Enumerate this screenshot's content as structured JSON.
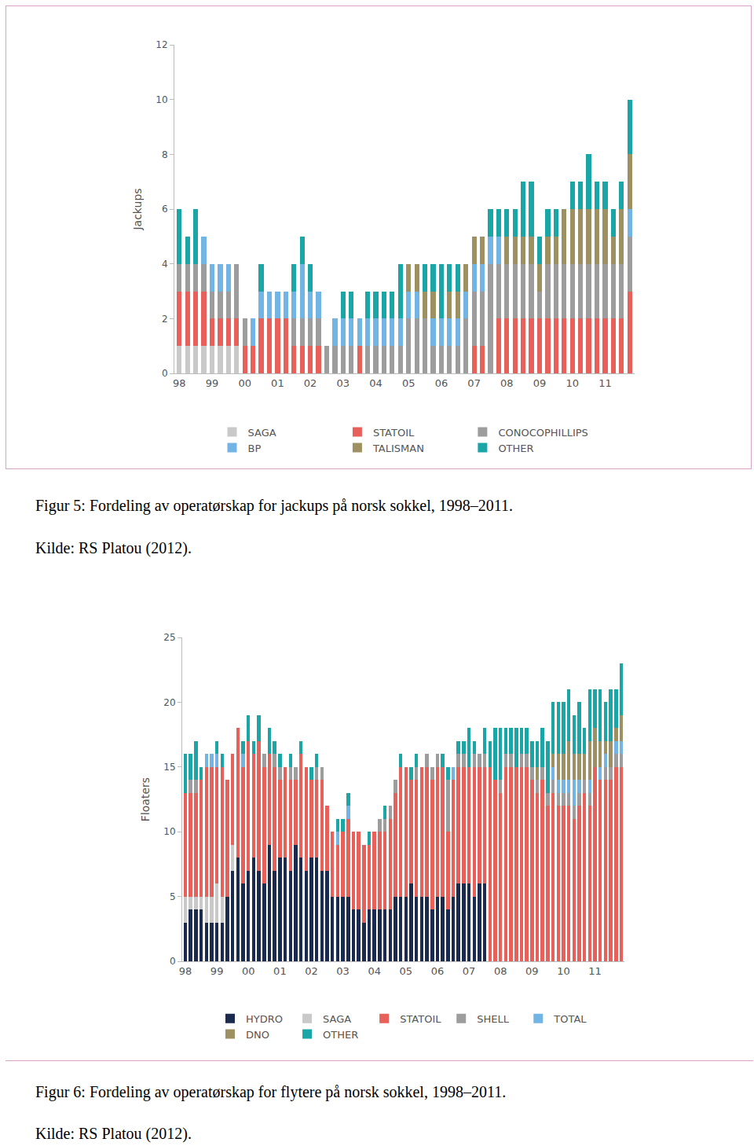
{
  "chart_data": [
    {
      "type": "bar",
      "stacked": true,
      "y_label": "Jackups",
      "legend": "bottom",
      "grid": false,
      "categories": [
        "98",
        null,
        null,
        null,
        "99",
        null,
        null,
        null,
        "00",
        null,
        null,
        null,
        "01",
        null,
        null,
        null,
        "02",
        null,
        null,
        null,
        "03",
        null,
        null,
        null,
        "04",
        null,
        null,
        null,
        "05",
        null,
        null,
        null,
        "06",
        null,
        null,
        null,
        "07",
        null,
        null,
        null,
        "08",
        null,
        null,
        null,
        "09",
        null,
        null,
        null,
        "10",
        null,
        null,
        null,
        "11",
        null,
        null,
        null
      ],
      "ylim": [
        0,
        12
      ],
      "yticks": [
        0,
        2,
        4,
        6,
        8,
        10,
        12
      ],
      "series": [
        {
          "name": "SAGA",
          "color": "#c9c9c9",
          "values": [
            1,
            1,
            1,
            1,
            1,
            1,
            1,
            1,
            0,
            0,
            0,
            0,
            0,
            0,
            0,
            0,
            0,
            0,
            0,
            0,
            0,
            0,
            0,
            0,
            0,
            0,
            0,
            0,
            0,
            0,
            0,
            0,
            0,
            0,
            0,
            0,
            0,
            0,
            0,
            0,
            0,
            0,
            0,
            0,
            0,
            0,
            0,
            0,
            0,
            0,
            0,
            0,
            0,
            0,
            0,
            0
          ]
        },
        {
          "name": "STATOIL",
          "color": "#e8605a",
          "values": [
            2,
            2,
            2,
            2,
            1,
            1,
            1,
            1,
            1,
            1,
            2,
            2,
            2,
            2,
            1,
            1,
            1,
            1,
            0,
            0,
            0,
            0,
            1,
            0,
            0,
            0,
            0,
            0,
            0,
            0,
            0,
            0,
            0,
            0,
            0,
            0,
            1,
            1,
            0,
            2,
            2,
            2,
            2,
            2,
            2,
            2,
            2,
            2,
            2,
            2,
            2,
            2,
            2,
            2,
            2,
            3
          ]
        },
        {
          "name": "CONOCOPHILLIPS",
          "color": "#9d9d9d",
          "values": [
            1,
            1,
            1,
            1,
            1,
            1,
            1,
            2,
            1,
            0,
            0,
            0,
            0,
            0,
            1,
            1,
            1,
            1,
            1,
            1,
            1,
            1,
            0,
            1,
            1,
            1,
            1,
            1,
            2,
            2,
            2,
            1,
            1,
            1,
            1,
            2,
            2,
            2,
            4,
            2,
            2,
            2,
            2,
            2,
            1,
            2,
            2,
            2,
            2,
            2,
            2,
            2,
            2,
            2,
            2,
            2
          ]
        },
        {
          "name": "BP",
          "color": "#72b4e4",
          "values": [
            0,
            0,
            0,
            1,
            1,
            1,
            1,
            0,
            0,
            1,
            1,
            1,
            1,
            1,
            1,
            2,
            1,
            1,
            0,
            1,
            1,
            1,
            1,
            1,
            1,
            1,
            1,
            1,
            1,
            1,
            0,
            1,
            1,
            1,
            1,
            1,
            1,
            1,
            1,
            1,
            0,
            0,
            0,
            0,
            0,
            0,
            0,
            0,
            0,
            0,
            0,
            0,
            0,
            0,
            0,
            1
          ]
        },
        {
          "name": "TALISMAN",
          "color": "#9e9161",
          "values": [
            0,
            0,
            0,
            0,
            0,
            0,
            0,
            0,
            0,
            0,
            0,
            0,
            0,
            0,
            0,
            0,
            0,
            0,
            0,
            0,
            0,
            0,
            0,
            0,
            0,
            0,
            0,
            0,
            1,
            1,
            1,
            1,
            0,
            1,
            1,
            1,
            1,
            1,
            0,
            0,
            1,
            1,
            1,
            1,
            1,
            1,
            1,
            2,
            2,
            2,
            2,
            2,
            2,
            1,
            2,
            2
          ]
        },
        {
          "name": "OTHER",
          "color": "#1aa6a6",
          "values": [
            2,
            1,
            2,
            0,
            0,
            0,
            0,
            0,
            0,
            0,
            1,
            0,
            0,
            0,
            1,
            1,
            1,
            0,
            0,
            0,
            1,
            1,
            0,
            1,
            1,
            1,
            1,
            2,
            0,
            0,
            1,
            1,
            2,
            1,
            1,
            0,
            0,
            0,
            1,
            1,
            1,
            1,
            2,
            2,
            1,
            1,
            1,
            0,
            1,
            1,
            2,
            1,
            1,
            1,
            1,
            2
          ]
        }
      ]
    },
    {
      "type": "bar",
      "stacked": true,
      "y_label": "Floaters",
      "legend": "bottom",
      "grid": false,
      "categories": [
        "98",
        null,
        null,
        null,
        null,
        null,
        "99",
        null,
        null,
        null,
        null,
        null,
        "00",
        null,
        null,
        null,
        null,
        null,
        "01",
        null,
        null,
        null,
        null,
        null,
        "02",
        null,
        null,
        null,
        null,
        null,
        "03",
        null,
        null,
        null,
        null,
        null,
        "04",
        null,
        null,
        null,
        null,
        null,
        "05",
        null,
        null,
        null,
        null,
        null,
        "06",
        null,
        null,
        null,
        null,
        null,
        "07",
        null,
        null,
        null,
        null,
        null,
        "08",
        null,
        null,
        null,
        null,
        null,
        "09",
        null,
        null,
        null,
        null,
        null,
        "10",
        null,
        null,
        null,
        null,
        null,
        "11",
        null,
        null,
        null,
        null,
        null
      ],
      "ylim": [
        0,
        25
      ],
      "yticks": [
        0,
        5,
        10,
        15,
        20,
        25
      ],
      "series": [
        {
          "name": "HYDRO",
          "color": "#1b2b50",
          "values": [
            3,
            4,
            4,
            4,
            3,
            3,
            3,
            3,
            5,
            7,
            8,
            6,
            7,
            8,
            7,
            6,
            9,
            7,
            8,
            8,
            7,
            9,
            8,
            7,
            8,
            8,
            7,
            7,
            5,
            5,
            5,
            5,
            4,
            4,
            3,
            4,
            4,
            4,
            4,
            4,
            5,
            5,
            5,
            6,
            5,
            5,
            5,
            4,
            5,
            5,
            4,
            5,
            6,
            6,
            6,
            5,
            6,
            6,
            0,
            0,
            0,
            0,
            0,
            0,
            0,
            0,
            0,
            0,
            0,
            0,
            0,
            0,
            0,
            0,
            0,
            0,
            0,
            0,
            0,
            0,
            0,
            0,
            0,
            0
          ]
        },
        {
          "name": "SAGA",
          "color": "#c9c9c9",
          "values": [
            2,
            1,
            1,
            1,
            2,
            2,
            3,
            2,
            0,
            2,
            0,
            0,
            0,
            0,
            0,
            0,
            0,
            0,
            0,
            0,
            0,
            0,
            0,
            0,
            0,
            0,
            0,
            0,
            0,
            0,
            0,
            0,
            0,
            0,
            0,
            0,
            0,
            0,
            0,
            0,
            0,
            0,
            0,
            0,
            0,
            0,
            0,
            0,
            0,
            0,
            0,
            0,
            0,
            0,
            0,
            0,
            0,
            0,
            0,
            0,
            0,
            0,
            0,
            0,
            0,
            0,
            0,
            0,
            0,
            0,
            0,
            0,
            0,
            0,
            0,
            0,
            0,
            0,
            0,
            0,
            0,
            0,
            0,
            0
          ]
        },
        {
          "name": "STATOIL",
          "color": "#e8605a",
          "values": [
            8,
            8,
            8,
            9,
            10,
            10,
            9,
            10,
            9,
            7,
            10,
            9,
            10,
            8,
            10,
            9,
            7,
            8,
            6,
            7,
            7,
            5,
            8,
            8,
            6,
            6,
            7,
            5,
            5,
            4,
            5,
            6,
            6,
            6,
            6,
            5,
            6,
            6,
            6,
            7,
            8,
            10,
            10,
            8,
            9,
            10,
            10,
            10,
            10,
            10,
            6,
            9,
            9,
            9,
            9,
            10,
            9,
            9,
            15,
            14,
            13,
            15,
            15,
            15,
            15,
            15,
            14,
            13,
            14,
            12,
            13,
            12,
            12,
            12,
            11,
            12,
            13,
            12,
            15,
            14,
            14,
            14,
            15,
            15
          ]
        },
        {
          "name": "SHELL",
          "color": "#9d9d9d",
          "values": [
            0,
            1,
            1,
            0,
            0,
            0,
            0,
            0,
            0,
            0,
            0,
            0,
            0,
            0,
            0,
            1,
            0,
            1,
            1,
            0,
            1,
            1,
            0,
            0,
            0,
            1,
            1,
            0,
            0,
            0,
            0,
            0,
            0,
            0,
            0,
            0,
            0,
            1,
            1,
            1,
            1,
            0,
            0,
            0,
            1,
            0,
            1,
            1,
            1,
            0,
            4,
            0,
            1,
            1,
            0,
            1,
            1,
            1,
            0,
            0,
            1,
            1,
            1,
            0,
            1,
            1,
            1,
            1,
            1,
            1,
            1,
            1,
            1,
            1,
            1,
            1,
            1,
            1,
            0,
            0,
            1,
            1,
            1,
            1
          ]
        },
        {
          "name": "TOTAL",
          "color": "#72b4e4",
          "values": [
            0,
            0,
            0,
            0,
            1,
            1,
            1,
            0,
            0,
            0,
            0,
            1,
            0,
            0,
            0,
            0,
            0,
            0,
            0,
            0,
            0,
            0,
            0,
            0,
            0,
            0,
            0,
            0,
            0,
            1,
            0,
            1,
            0,
            0,
            0,
            0,
            0,
            0,
            0,
            0,
            0,
            0,
            0,
            0,
            0,
            0,
            0,
            0,
            0,
            0,
            0,
            1,
            0,
            0,
            0,
            0,
            0,
            0,
            0,
            0,
            0,
            0,
            0,
            0,
            0,
            0,
            0,
            0,
            0,
            0,
            1,
            1,
            1,
            1,
            2,
            1,
            0,
            1,
            0,
            1,
            1,
            0,
            1,
            1
          ]
        },
        {
          "name": "DNO",
          "color": "#9e9161",
          "values": [
            0,
            0,
            0,
            0,
            0,
            0,
            0,
            0,
            0,
            0,
            0,
            0,
            0,
            0,
            0,
            0,
            0,
            0,
            0,
            0,
            0,
            0,
            0,
            0,
            0,
            0,
            0,
            0,
            0,
            0,
            0,
            0,
            0,
            0,
            0,
            0,
            0,
            0,
            0,
            0,
            0,
            0,
            0,
            0,
            0,
            0,
            0,
            0,
            0,
            0,
            0,
            0,
            0,
            0,
            0,
            0,
            0,
            0,
            0,
            0,
            0,
            0,
            0,
            0,
            0,
            0,
            0,
            1,
            0,
            0,
            1,
            2,
            2,
            3,
            2,
            2,
            2,
            3,
            3,
            2,
            1,
            2,
            1,
            2
          ]
        },
        {
          "name": "OTHER",
          "color": "#1aa6a6",
          "values": [
            3,
            2,
            3,
            1,
            0,
            0,
            1,
            1,
            0,
            0,
            0,
            1,
            2,
            1,
            2,
            0,
            2,
            1,
            1,
            0,
            1,
            0,
            1,
            0,
            1,
            1,
            0,
            0,
            0,
            1,
            1,
            1,
            0,
            0,
            0,
            1,
            0,
            0,
            1,
            0,
            0,
            1,
            0,
            1,
            1,
            0,
            0,
            0,
            0,
            1,
            1,
            0,
            1,
            1,
            3,
            1,
            0,
            2,
            2,
            4,
            4,
            2,
            2,
            3,
            2,
            2,
            2,
            2,
            3,
            4,
            4,
            4,
            4,
            4,
            3,
            4,
            2,
            4,
            3,
            4,
            3,
            4,
            3,
            4
          ]
        }
      ]
    }
  ],
  "captions": [
    {
      "text": "Figur 5: Fordeling av operatørskap for jackups på norsk sokkel, 1998–2011.",
      "source": "Kilde: RS Platou (2012)."
    },
    {
      "text": "Figur 6: Fordeling av operatørskap for flytere på norsk sokkel, 1998–2011.",
      "source": "Kilde: RS Platou (2012)."
    }
  ]
}
